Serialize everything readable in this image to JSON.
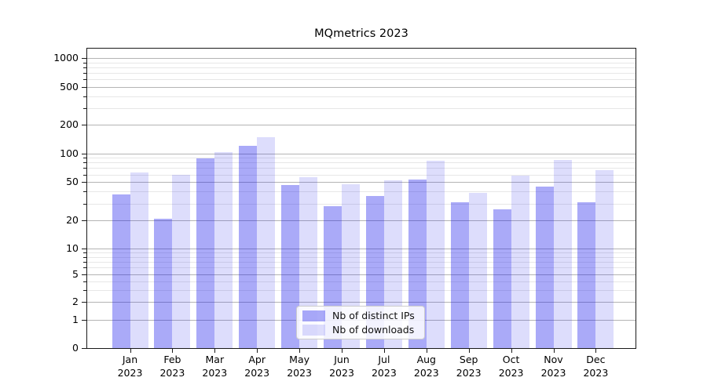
{
  "title": "MQmetrics 2023",
  "chart_data": {
    "type": "bar",
    "title": "MQmetrics 2023",
    "categories": [
      "Jan 2023",
      "Feb 2023",
      "Mar 2023",
      "Apr 2023",
      "May 2023",
      "Jun 2023",
      "Jul 2023",
      "Aug 2023",
      "Sep 2023",
      "Oct 2023",
      "Nov 2023",
      "Dec 2023"
    ],
    "series": [
      {
        "name": "Nb of distinct IPs",
        "color": "rgba(25,25,235,0.37)",
        "color_hex": "#aaaaf5",
        "values": [
          37,
          21,
          89,
          120,
          47,
          28,
          36,
          53,
          31,
          26,
          45,
          31
        ]
      },
      {
        "name": "Nb of downloads",
        "color": "rgba(25,25,235,0.15)",
        "color_hex": "#dbdbf8",
        "values": [
          63,
          60,
          103,
          148,
          56,
          48,
          52,
          84,
          39,
          58,
          86,
          67
        ]
      }
    ],
    "xlabel": "",
    "ylabel": "",
    "yscale": "symlog",
    "yticks": [
      0,
      1,
      2,
      5,
      10,
      20,
      50,
      100,
      200,
      500,
      1000
    ],
    "ylim": [
      0,
      1250
    ],
    "grid": true,
    "grid_major_color": "#b4b4b4",
    "grid_minor_color": "#e7e7e7",
    "legend_position": "lower center"
  }
}
